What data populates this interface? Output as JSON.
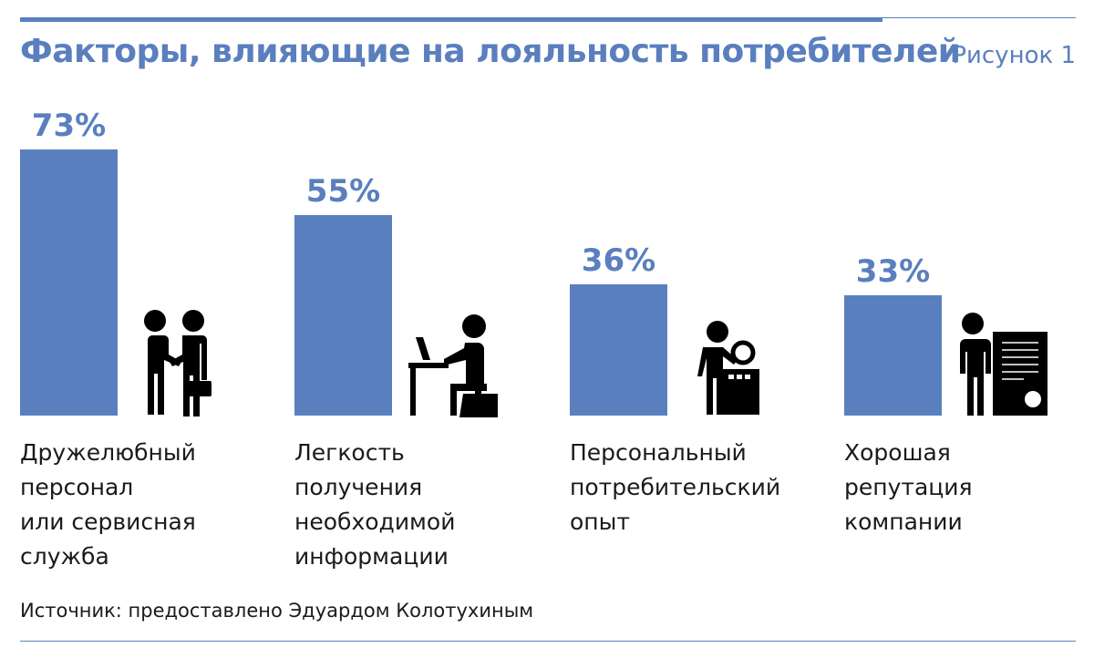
{
  "header": {
    "title": "Факторы, влияющие на лояльность потребителей",
    "figure_label": "Рисунок 1"
  },
  "chart_data": {
    "type": "bar",
    "categories": [
      "Дружелюбный персонал или сервисная служба",
      "Легкость получения необходимой информации",
      "Персональный потребительский опыт",
      "Хорошая репутация компании"
    ],
    "category_lines": [
      [
        "Дружелюбный",
        "персонал",
        "или сервисная",
        "служба"
      ],
      [
        "Легкость",
        "получения",
        "необходимой",
        "информации"
      ],
      [
        "Персональный",
        "потребительский",
        "опыт"
      ],
      [
        "Хорошая",
        "репутация",
        "компании"
      ]
    ],
    "values": [
      73,
      55,
      36,
      33
    ],
    "value_labels": [
      "73%",
      "55%",
      "36%",
      "33%"
    ],
    "unit": "%",
    "title": "Факторы, влияющие на лояльность потребителей",
    "xlabel": "",
    "ylabel": "",
    "ylim": [
      0,
      100
    ],
    "grid": false,
    "legend": "none",
    "bar_color": "#5a7fbf",
    "icons": [
      "handshake-icon",
      "person-at-laptop-icon",
      "person-with-magnifier-icon",
      "person-with-certificate-icon"
    ]
  },
  "footer": {
    "source": "Источник: предоставлено Эдуардом Колотухиным"
  },
  "colors": {
    "accent": "#5a7fbf",
    "text": "#1a1a1a",
    "icon": "#000000"
  }
}
